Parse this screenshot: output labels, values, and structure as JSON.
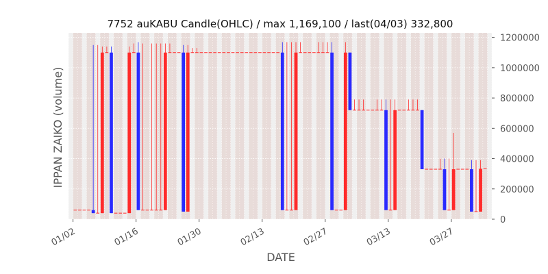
{
  "chart_data": {
    "type": "candlestick",
    "title": "7752 auKABU Candle(OHLC) / max 1,169,100 / last(04/03) 332,800",
    "xlabel": "DATE",
    "ylabel": "IPPAN ZAIKO (volume)",
    "ylim": [
      0,
      1230000
    ],
    "yticks": [
      0,
      200000,
      400000,
      600000,
      800000,
      1000000,
      1200000
    ],
    "ytick_labels": [
      "0",
      "200000",
      "400000",
      "600000",
      "800000",
      "1000000",
      "1200000"
    ],
    "y_axis_side": "right",
    "xticks": [
      "2023-01-02",
      "2023-01-16",
      "2023-01-30",
      "2023-02-13",
      "2023-02-27",
      "2023-03-13",
      "2023-03-27"
    ],
    "xtick_labels": [
      "01/02",
      "01/16",
      "01/30",
      "02/13",
      "02/27",
      "03/13",
      "03/27"
    ],
    "xlim": [
      "2023-01-01",
      "2023-04-05"
    ],
    "grid": true,
    "colors": {
      "up": "#ff2a2a",
      "down": "#2a2aff",
      "background": "#e8e8e8",
      "grid": "#ffffff"
    },
    "candles": [
      {
        "date": "2023-01-02",
        "open": 60000,
        "high": 60000,
        "low": 60000,
        "close": 60000
      },
      {
        "date": "2023-01-03",
        "open": 60000,
        "high": 60000,
        "low": 60000,
        "close": 60000
      },
      {
        "date": "2023-01-04",
        "open": 60000,
        "high": 60000,
        "low": 60000,
        "close": 60000
      },
      {
        "date": "2023-01-05",
        "open": 60000,
        "high": 60000,
        "low": 60000,
        "close": 60000
      },
      {
        "date": "2023-01-06",
        "open": 60000,
        "high": 1150000,
        "low": 40000,
        "close": 40000
      },
      {
        "date": "2023-01-07",
        "open": 40000,
        "high": 1150000,
        "low": 40000,
        "close": 40000
      },
      {
        "date": "2023-01-08",
        "open": 40000,
        "high": 1140000,
        "low": 40000,
        "close": 1100000
      },
      {
        "date": "2023-01-09",
        "open": 1100000,
        "high": 1140000,
        "low": 1100000,
        "close": 1100000
      },
      {
        "date": "2023-01-10",
        "open": 1100000,
        "high": 1140000,
        "low": 40000,
        "close": 40000
      },
      {
        "date": "2023-01-11",
        "open": 40000,
        "high": 40000,
        "low": 40000,
        "close": 40000
      },
      {
        "date": "2023-01-12",
        "open": 40000,
        "high": 40000,
        "low": 40000,
        "close": 40000
      },
      {
        "date": "2023-01-13",
        "open": 40000,
        "high": 40000,
        "low": 40000,
        "close": 40000
      },
      {
        "date": "2023-01-14",
        "open": 40000,
        "high": 1140000,
        "low": 40000,
        "close": 1100000
      },
      {
        "date": "2023-01-15",
        "open": 1100000,
        "high": 1160000,
        "low": 1100000,
        "close": 1100000
      },
      {
        "date": "2023-01-16",
        "open": 1100000,
        "high": 1169100,
        "low": 60000,
        "close": 60000
      },
      {
        "date": "2023-01-17",
        "open": 60000,
        "high": 1160000,
        "low": 60000,
        "close": 60000
      },
      {
        "date": "2023-01-18",
        "open": 60000,
        "high": 60000,
        "low": 60000,
        "close": 60000
      },
      {
        "date": "2023-01-19",
        "open": 60000,
        "high": 1160000,
        "low": 60000,
        "close": 60000
      },
      {
        "date": "2023-01-20",
        "open": 60000,
        "high": 1160000,
        "low": 60000,
        "close": 60000
      },
      {
        "date": "2023-01-21",
        "open": 60000,
        "high": 1160000,
        "low": 60000,
        "close": 60000
      },
      {
        "date": "2023-01-22",
        "open": 60000,
        "high": 1160000,
        "low": 60000,
        "close": 1100000
      },
      {
        "date": "2023-01-23",
        "open": 1100000,
        "high": 1160000,
        "low": 1100000,
        "close": 1100000
      },
      {
        "date": "2023-01-24",
        "open": 1100000,
        "high": 1100000,
        "low": 1100000,
        "close": 1100000
      },
      {
        "date": "2023-01-25",
        "open": 1100000,
        "high": 1100000,
        "low": 1100000,
        "close": 1100000
      },
      {
        "date": "2023-01-26",
        "open": 1100000,
        "high": 1150000,
        "low": 50000,
        "close": 50000
      },
      {
        "date": "2023-01-27",
        "open": 50000,
        "high": 1150000,
        "low": 50000,
        "close": 1100000
      },
      {
        "date": "2023-01-28",
        "open": 1100000,
        "high": 1130000,
        "low": 1100000,
        "close": 1100000
      },
      {
        "date": "2023-01-29",
        "open": 1100000,
        "high": 1130000,
        "low": 1100000,
        "close": 1100000
      },
      {
        "date": "2023-01-30",
        "open": 1100000,
        "high": 1100000,
        "low": 1100000,
        "close": 1100000
      },
      {
        "date": "2023-01-31",
        "open": 1100000,
        "high": 1100000,
        "low": 1100000,
        "close": 1100000
      },
      {
        "date": "2023-02-01",
        "open": 1100000,
        "high": 1100000,
        "low": 1100000,
        "close": 1100000
      },
      {
        "date": "2023-02-02",
        "open": 1100000,
        "high": 1100000,
        "low": 1100000,
        "close": 1100000
      },
      {
        "date": "2023-02-03",
        "open": 1100000,
        "high": 1100000,
        "low": 1100000,
        "close": 1100000
      },
      {
        "date": "2023-02-04",
        "open": 1100000,
        "high": 1100000,
        "low": 1100000,
        "close": 1100000
      },
      {
        "date": "2023-02-05",
        "open": 1100000,
        "high": 1100000,
        "low": 1100000,
        "close": 1100000
      },
      {
        "date": "2023-02-06",
        "open": 1100000,
        "high": 1100000,
        "low": 1100000,
        "close": 1100000
      },
      {
        "date": "2023-02-07",
        "open": 1100000,
        "high": 1100000,
        "low": 1100000,
        "close": 1100000
      },
      {
        "date": "2023-02-08",
        "open": 1100000,
        "high": 1100000,
        "low": 1100000,
        "close": 1100000
      },
      {
        "date": "2023-02-09",
        "open": 1100000,
        "high": 1100000,
        "low": 1100000,
        "close": 1100000
      },
      {
        "date": "2023-02-10",
        "open": 1100000,
        "high": 1100000,
        "low": 1100000,
        "close": 1100000
      },
      {
        "date": "2023-02-11",
        "open": 1100000,
        "high": 1100000,
        "low": 1100000,
        "close": 1100000
      },
      {
        "date": "2023-02-12",
        "open": 1100000,
        "high": 1100000,
        "low": 1100000,
        "close": 1100000
      },
      {
        "date": "2023-02-13",
        "open": 1100000,
        "high": 1100000,
        "low": 1100000,
        "close": 1100000
      },
      {
        "date": "2023-02-14",
        "open": 1100000,
        "high": 1100000,
        "low": 1100000,
        "close": 1100000
      },
      {
        "date": "2023-02-15",
        "open": 1100000,
        "high": 1100000,
        "low": 1100000,
        "close": 1100000
      },
      {
        "date": "2023-02-16",
        "open": 1100000,
        "high": 1100000,
        "low": 1100000,
        "close": 1100000
      },
      {
        "date": "2023-02-17",
        "open": 1100000,
        "high": 1169100,
        "low": 60000,
        "close": 60000
      },
      {
        "date": "2023-02-18",
        "open": 60000,
        "high": 1169100,
        "low": 60000,
        "close": 60000
      },
      {
        "date": "2023-02-19",
        "open": 60000,
        "high": 1169100,
        "low": 60000,
        "close": 60000
      },
      {
        "date": "2023-02-20",
        "open": 60000,
        "high": 1169100,
        "low": 60000,
        "close": 1100000
      },
      {
        "date": "2023-02-21",
        "open": 1100000,
        "high": 1169100,
        "low": 1100000,
        "close": 1100000
      },
      {
        "date": "2023-02-22",
        "open": 1100000,
        "high": 1100000,
        "low": 1100000,
        "close": 1100000
      },
      {
        "date": "2023-02-23",
        "open": 1100000,
        "high": 1100000,
        "low": 1100000,
        "close": 1100000
      },
      {
        "date": "2023-02-24",
        "open": 1100000,
        "high": 1100000,
        "low": 1100000,
        "close": 1100000
      },
      {
        "date": "2023-02-25",
        "open": 1100000,
        "high": 1169100,
        "low": 1100000,
        "close": 1100000
      },
      {
        "date": "2023-02-26",
        "open": 1100000,
        "high": 1169100,
        "low": 1100000,
        "close": 1100000
      },
      {
        "date": "2023-02-27",
        "open": 1100000,
        "high": 1169100,
        "low": 1100000,
        "close": 1100000
      },
      {
        "date": "2023-02-28",
        "open": 1100000,
        "high": 1169100,
        "low": 60000,
        "close": 60000
      },
      {
        "date": "2023-03-01",
        "open": 60000,
        "high": 60000,
        "low": 60000,
        "close": 60000
      },
      {
        "date": "2023-03-02",
        "open": 60000,
        "high": 60000,
        "low": 60000,
        "close": 60000
      },
      {
        "date": "2023-03-03",
        "open": 60000,
        "high": 1169100,
        "low": 60000,
        "close": 1100000
      },
      {
        "date": "2023-03-04",
        "open": 1100000,
        "high": 1100000,
        "low": 720000,
        "close": 720000
      },
      {
        "date": "2023-03-05",
        "open": 720000,
        "high": 790000,
        "low": 720000,
        "close": 720000
      },
      {
        "date": "2023-03-06",
        "open": 720000,
        "high": 790000,
        "low": 720000,
        "close": 720000
      },
      {
        "date": "2023-03-07",
        "open": 720000,
        "high": 790000,
        "low": 720000,
        "close": 720000
      },
      {
        "date": "2023-03-08",
        "open": 720000,
        "high": 720000,
        "low": 720000,
        "close": 720000
      },
      {
        "date": "2023-03-09",
        "open": 720000,
        "high": 720000,
        "low": 720000,
        "close": 720000
      },
      {
        "date": "2023-03-10",
        "open": 720000,
        "high": 790000,
        "low": 720000,
        "close": 720000
      },
      {
        "date": "2023-03-11",
        "open": 720000,
        "high": 790000,
        "low": 720000,
        "close": 720000
      },
      {
        "date": "2023-03-12",
        "open": 720000,
        "high": 790000,
        "low": 60000,
        "close": 60000
      },
      {
        "date": "2023-03-13",
        "open": 60000,
        "high": 790000,
        "low": 60000,
        "close": 60000
      },
      {
        "date": "2023-03-14",
        "open": 60000,
        "high": 790000,
        "low": 60000,
        "close": 720000
      },
      {
        "date": "2023-03-15",
        "open": 720000,
        "high": 720000,
        "low": 720000,
        "close": 720000
      },
      {
        "date": "2023-03-16",
        "open": 720000,
        "high": 720000,
        "low": 720000,
        "close": 720000
      },
      {
        "date": "2023-03-17",
        "open": 720000,
        "high": 790000,
        "low": 720000,
        "close": 720000
      },
      {
        "date": "2023-03-18",
        "open": 720000,
        "high": 790000,
        "low": 720000,
        "close": 720000
      },
      {
        "date": "2023-03-19",
        "open": 720000,
        "high": 790000,
        "low": 720000,
        "close": 720000
      },
      {
        "date": "2023-03-20",
        "open": 720000,
        "high": 720000,
        "low": 330000,
        "close": 330000
      },
      {
        "date": "2023-03-21",
        "open": 330000,
        "high": 330000,
        "low": 330000,
        "close": 330000
      },
      {
        "date": "2023-03-22",
        "open": 330000,
        "high": 330000,
        "low": 330000,
        "close": 330000
      },
      {
        "date": "2023-03-23",
        "open": 330000,
        "high": 330000,
        "low": 330000,
        "close": 330000
      },
      {
        "date": "2023-03-24",
        "open": 330000,
        "high": 400000,
        "low": 330000,
        "close": 330000
      },
      {
        "date": "2023-03-25",
        "open": 330000,
        "high": 400000,
        "low": 60000,
        "close": 60000
      },
      {
        "date": "2023-03-26",
        "open": 60000,
        "high": 400000,
        "low": 60000,
        "close": 60000
      },
      {
        "date": "2023-03-27",
        "open": 60000,
        "high": 570000,
        "low": 60000,
        "close": 330000
      },
      {
        "date": "2023-03-28",
        "open": 330000,
        "high": 330000,
        "low": 330000,
        "close": 330000
      },
      {
        "date": "2023-03-29",
        "open": 330000,
        "high": 330000,
        "low": 330000,
        "close": 330000
      },
      {
        "date": "2023-03-30",
        "open": 330000,
        "high": 330000,
        "low": 330000,
        "close": 330000
      },
      {
        "date": "2023-03-31",
        "open": 330000,
        "high": 390000,
        "low": 50000,
        "close": 50000
      },
      {
        "date": "2023-04-01",
        "open": 50000,
        "high": 390000,
        "low": 50000,
        "close": 50000
      },
      {
        "date": "2023-04-02",
        "open": 50000,
        "high": 390000,
        "low": 50000,
        "close": 332800
      },
      {
        "date": "2023-04-03",
        "open": 332800,
        "high": 332800,
        "low": 332800,
        "close": 332800
      }
    ]
  }
}
